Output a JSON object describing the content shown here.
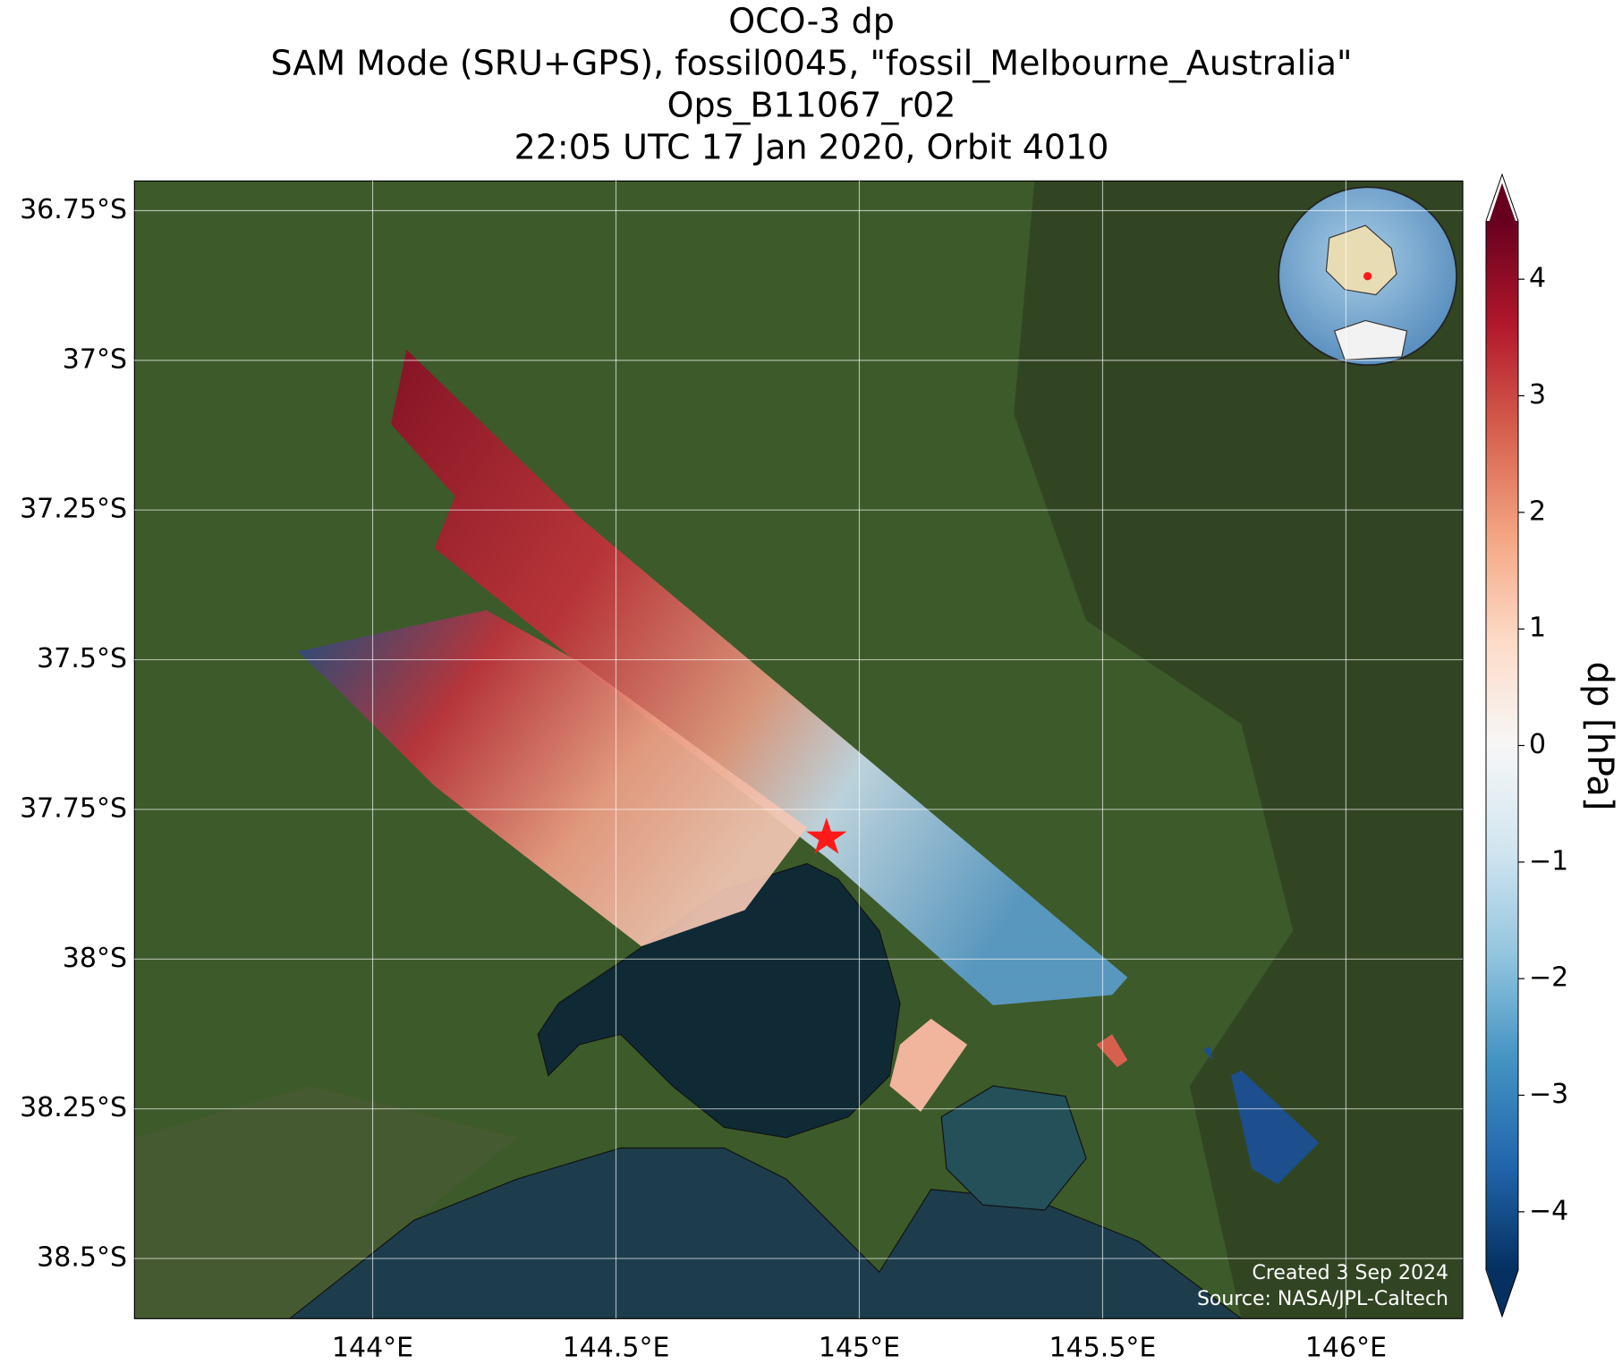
{
  "chart_data": {
    "type": "map",
    "title": [
      "OCO-3 dp",
      "SAM Mode (SRU+GPS), fossil0045, \"fossil_Melbourne_Australia\"",
      "Ops_B11067_r02",
      "22:05 UTC 17 Jan 2020, Orbit 4010"
    ],
    "xlim": [
      143.51,
      146.24
    ],
    "ylim": [
      -38.6,
      -36.7
    ],
    "xticks": [
      {
        "value": 144,
        "label": "144°E"
      },
      {
        "value": 144.5,
        "label": "144.5°E"
      },
      {
        "value": 145,
        "label": "145°E"
      },
      {
        "value": 145.5,
        "label": "145.5°E"
      },
      {
        "value": 146,
        "label": "146°E"
      }
    ],
    "yticks": [
      {
        "value": -36.75,
        "label": "36.75°S"
      },
      {
        "value": -37,
        "label": "37°S"
      },
      {
        "value": -37.25,
        "label": "37.25°S"
      },
      {
        "value": -37.5,
        "label": "37.5°S"
      },
      {
        "value": -37.75,
        "label": "37.75°S"
      },
      {
        "value": -38,
        "label": "38°S"
      },
      {
        "value": -38.25,
        "label": "38.25°S"
      },
      {
        "value": -38.5,
        "label": "38.5°S"
      }
    ],
    "grid": true,
    "colorbar": {
      "label": "dp [hPa]",
      "lim": [
        -4.5,
        4.5
      ],
      "ticks": [
        {
          "value": -4,
          "label": "−4"
        },
        {
          "value": -3,
          "label": "−3"
        },
        {
          "value": -2,
          "label": "−2"
        },
        {
          "value": -1,
          "label": "−1"
        },
        0,
        1,
        2,
        3,
        4
      ]
    },
    "annotations": [
      "Created 3 Sep 2024",
      "Source: NASA/JPL-Caltech"
    ]
  }
}
